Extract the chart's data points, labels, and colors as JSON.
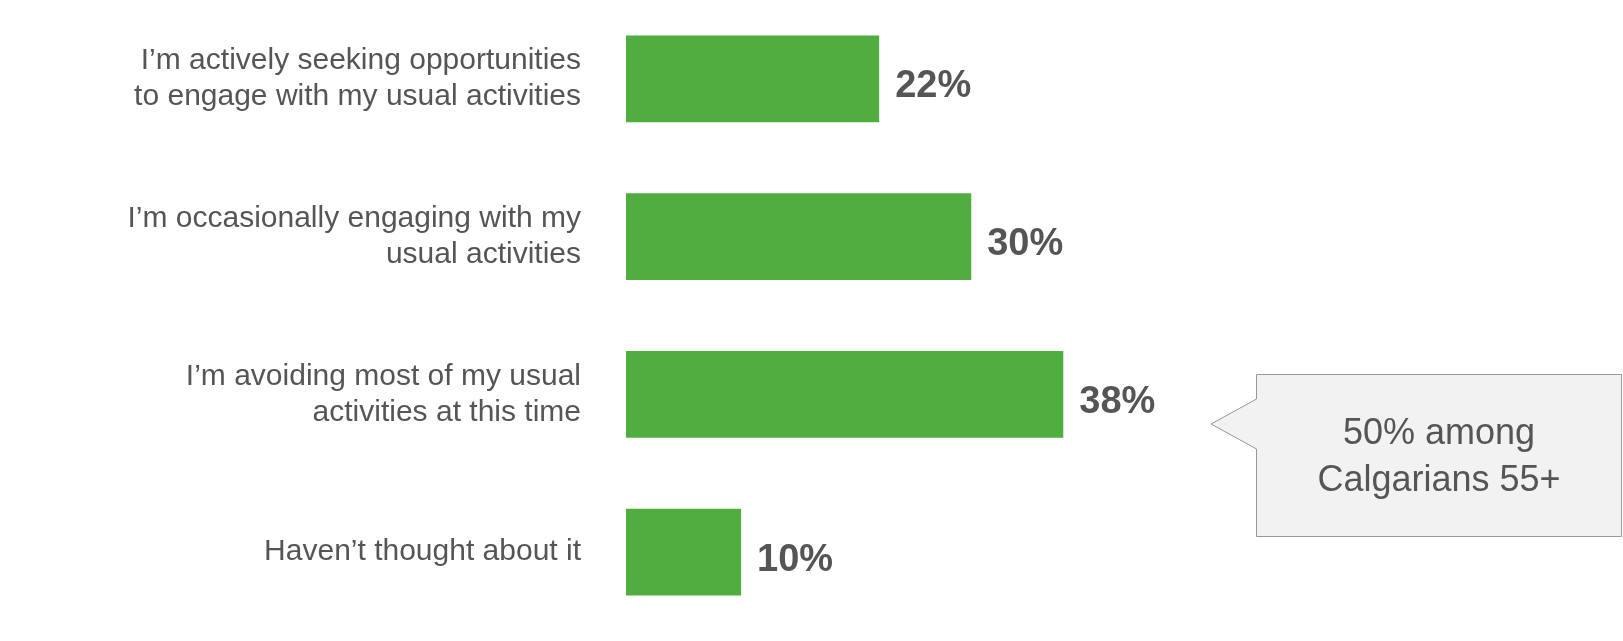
{
  "chart_data": {
    "type": "bar",
    "orientation": "horizontal",
    "categories": [
      "I’m actively seeking opportunities to engage with my usual activities",
      "I’m occasionally engaging with my usual activities",
      "I’m avoiding most of my usual activities at this time",
      "Haven’t thought about it"
    ],
    "values": [
      22,
      30,
      38,
      10
    ],
    "color": "#50ae41",
    "value_labels": [
      "22%",
      "30%",
      "38%",
      "10%"
    ],
    "annotations": [
      "50% among Calgarians 55+"
    ]
  }
}
